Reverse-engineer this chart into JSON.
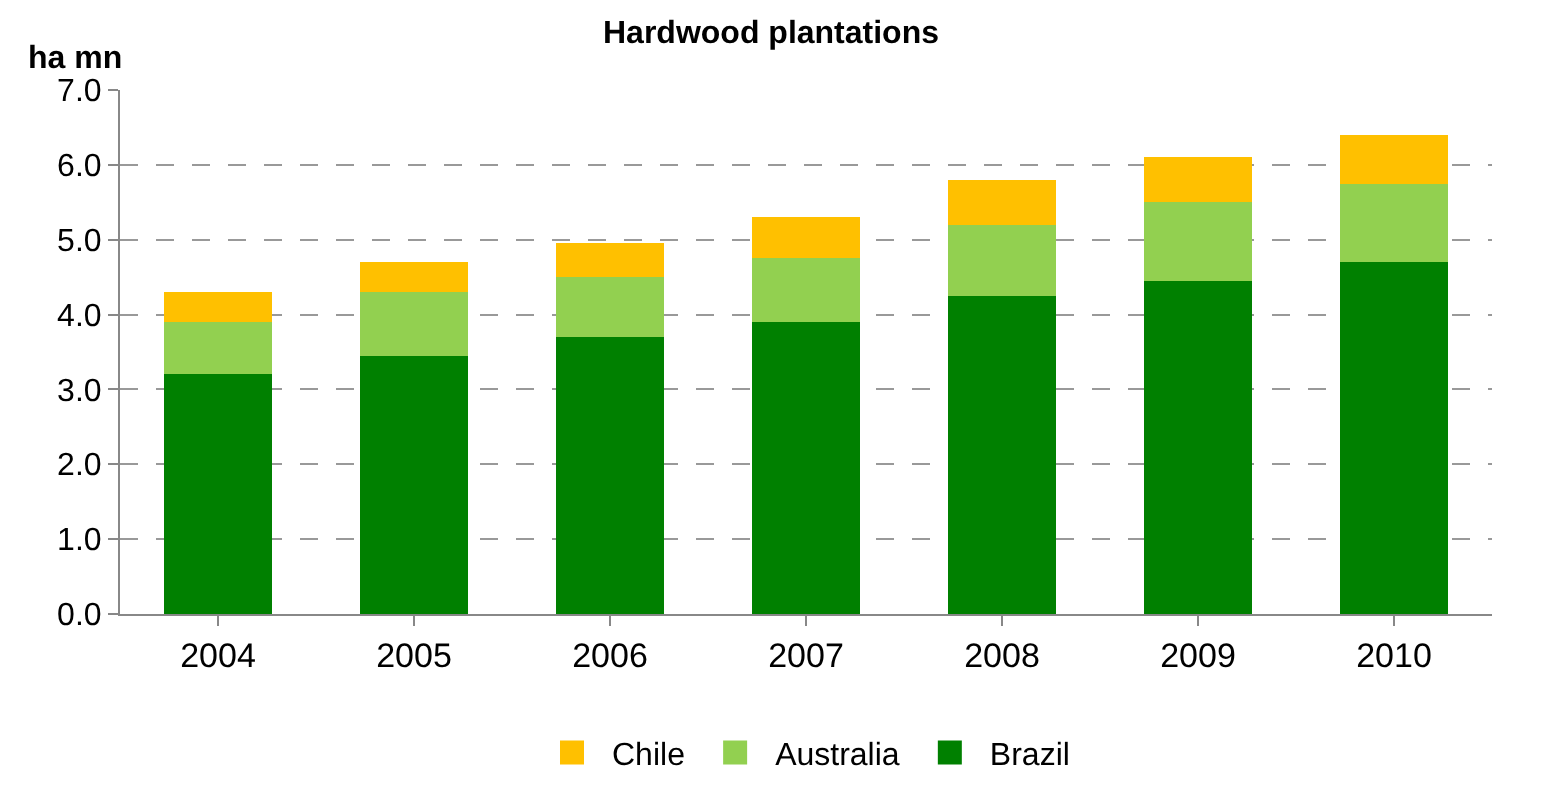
{
  "chart_data": {
    "type": "bar",
    "title": "Hardwood plantations",
    "ylabel": "ha mn",
    "stacked": true,
    "categories": [
      "2004",
      "2005",
      "2006",
      "2007",
      "2008",
      "2009",
      "2010"
    ],
    "series": [
      {
        "name": "Brazil",
        "color": "#008000",
        "values": [
          3.2,
          3.45,
          3.7,
          3.9,
          4.25,
          4.45,
          4.7
        ]
      },
      {
        "name": "Australia",
        "color": "#92d050",
        "values": [
          0.7,
          0.85,
          0.8,
          0.85,
          0.95,
          1.05,
          1.05
        ]
      },
      {
        "name": "Chile",
        "color": "#ffc000",
        "values": [
          0.4,
          0.4,
          0.45,
          0.55,
          0.6,
          0.6,
          0.65
        ]
      }
    ],
    "ylim": [
      0,
      7
    ],
    "yticks": [
      {
        "value": 0,
        "label": "0.0"
      },
      {
        "value": 1,
        "label": "1.0"
      },
      {
        "value": 2,
        "label": "2.0"
      },
      {
        "value": 3,
        "label": "3.0"
      },
      {
        "value": 4,
        "label": "4.0"
      },
      {
        "value": 5,
        "label": "5.0"
      },
      {
        "value": 6,
        "label": "6.0"
      },
      {
        "value": 7,
        "label": "7.0"
      }
    ],
    "grid": "y",
    "legend": "bottom"
  }
}
